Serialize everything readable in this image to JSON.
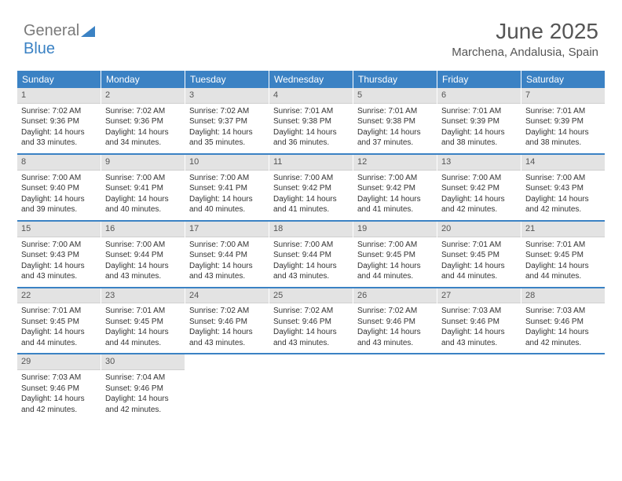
{
  "brand": {
    "part1": "General",
    "part2": "Blue"
  },
  "header": {
    "title": "June 2025",
    "location": "Marchena, Andalusia, Spain"
  },
  "colors": {
    "accent": "#3b82c4",
    "header_bg": "#3b82c4",
    "daynum_bg": "#e3e3e3"
  },
  "dayNames": [
    "Sunday",
    "Monday",
    "Tuesday",
    "Wednesday",
    "Thursday",
    "Friday",
    "Saturday"
  ],
  "weeks": [
    [
      {
        "n": "1",
        "sr": "Sunrise: 7:02 AM",
        "ss": "Sunset: 9:36 PM",
        "d1": "Daylight: 14 hours",
        "d2": "and 33 minutes."
      },
      {
        "n": "2",
        "sr": "Sunrise: 7:02 AM",
        "ss": "Sunset: 9:36 PM",
        "d1": "Daylight: 14 hours",
        "d2": "and 34 minutes."
      },
      {
        "n": "3",
        "sr": "Sunrise: 7:02 AM",
        "ss": "Sunset: 9:37 PM",
        "d1": "Daylight: 14 hours",
        "d2": "and 35 minutes."
      },
      {
        "n": "4",
        "sr": "Sunrise: 7:01 AM",
        "ss": "Sunset: 9:38 PM",
        "d1": "Daylight: 14 hours",
        "d2": "and 36 minutes."
      },
      {
        "n": "5",
        "sr": "Sunrise: 7:01 AM",
        "ss": "Sunset: 9:38 PM",
        "d1": "Daylight: 14 hours",
        "d2": "and 37 minutes."
      },
      {
        "n": "6",
        "sr": "Sunrise: 7:01 AM",
        "ss": "Sunset: 9:39 PM",
        "d1": "Daylight: 14 hours",
        "d2": "and 38 minutes."
      },
      {
        "n": "7",
        "sr": "Sunrise: 7:01 AM",
        "ss": "Sunset: 9:39 PM",
        "d1": "Daylight: 14 hours",
        "d2": "and 38 minutes."
      }
    ],
    [
      {
        "n": "8",
        "sr": "Sunrise: 7:00 AM",
        "ss": "Sunset: 9:40 PM",
        "d1": "Daylight: 14 hours",
        "d2": "and 39 minutes."
      },
      {
        "n": "9",
        "sr": "Sunrise: 7:00 AM",
        "ss": "Sunset: 9:41 PM",
        "d1": "Daylight: 14 hours",
        "d2": "and 40 minutes."
      },
      {
        "n": "10",
        "sr": "Sunrise: 7:00 AM",
        "ss": "Sunset: 9:41 PM",
        "d1": "Daylight: 14 hours",
        "d2": "and 40 minutes."
      },
      {
        "n": "11",
        "sr": "Sunrise: 7:00 AM",
        "ss": "Sunset: 9:42 PM",
        "d1": "Daylight: 14 hours",
        "d2": "and 41 minutes."
      },
      {
        "n": "12",
        "sr": "Sunrise: 7:00 AM",
        "ss": "Sunset: 9:42 PM",
        "d1": "Daylight: 14 hours",
        "d2": "and 41 minutes."
      },
      {
        "n": "13",
        "sr": "Sunrise: 7:00 AM",
        "ss": "Sunset: 9:42 PM",
        "d1": "Daylight: 14 hours",
        "d2": "and 42 minutes."
      },
      {
        "n": "14",
        "sr": "Sunrise: 7:00 AM",
        "ss": "Sunset: 9:43 PM",
        "d1": "Daylight: 14 hours",
        "d2": "and 42 minutes."
      }
    ],
    [
      {
        "n": "15",
        "sr": "Sunrise: 7:00 AM",
        "ss": "Sunset: 9:43 PM",
        "d1": "Daylight: 14 hours",
        "d2": "and 43 minutes."
      },
      {
        "n": "16",
        "sr": "Sunrise: 7:00 AM",
        "ss": "Sunset: 9:44 PM",
        "d1": "Daylight: 14 hours",
        "d2": "and 43 minutes."
      },
      {
        "n": "17",
        "sr": "Sunrise: 7:00 AM",
        "ss": "Sunset: 9:44 PM",
        "d1": "Daylight: 14 hours",
        "d2": "and 43 minutes."
      },
      {
        "n": "18",
        "sr": "Sunrise: 7:00 AM",
        "ss": "Sunset: 9:44 PM",
        "d1": "Daylight: 14 hours",
        "d2": "and 43 minutes."
      },
      {
        "n": "19",
        "sr": "Sunrise: 7:00 AM",
        "ss": "Sunset: 9:45 PM",
        "d1": "Daylight: 14 hours",
        "d2": "and 44 minutes."
      },
      {
        "n": "20",
        "sr": "Sunrise: 7:01 AM",
        "ss": "Sunset: 9:45 PM",
        "d1": "Daylight: 14 hours",
        "d2": "and 44 minutes."
      },
      {
        "n": "21",
        "sr": "Sunrise: 7:01 AM",
        "ss": "Sunset: 9:45 PM",
        "d1": "Daylight: 14 hours",
        "d2": "and 44 minutes."
      }
    ],
    [
      {
        "n": "22",
        "sr": "Sunrise: 7:01 AM",
        "ss": "Sunset: 9:45 PM",
        "d1": "Daylight: 14 hours",
        "d2": "and 44 minutes."
      },
      {
        "n": "23",
        "sr": "Sunrise: 7:01 AM",
        "ss": "Sunset: 9:45 PM",
        "d1": "Daylight: 14 hours",
        "d2": "and 44 minutes."
      },
      {
        "n": "24",
        "sr": "Sunrise: 7:02 AM",
        "ss": "Sunset: 9:46 PM",
        "d1": "Daylight: 14 hours",
        "d2": "and 43 minutes."
      },
      {
        "n": "25",
        "sr": "Sunrise: 7:02 AM",
        "ss": "Sunset: 9:46 PM",
        "d1": "Daylight: 14 hours",
        "d2": "and 43 minutes."
      },
      {
        "n": "26",
        "sr": "Sunrise: 7:02 AM",
        "ss": "Sunset: 9:46 PM",
        "d1": "Daylight: 14 hours",
        "d2": "and 43 minutes."
      },
      {
        "n": "27",
        "sr": "Sunrise: 7:03 AM",
        "ss": "Sunset: 9:46 PM",
        "d1": "Daylight: 14 hours",
        "d2": "and 43 minutes."
      },
      {
        "n": "28",
        "sr": "Sunrise: 7:03 AM",
        "ss": "Sunset: 9:46 PM",
        "d1": "Daylight: 14 hours",
        "d2": "and 42 minutes."
      }
    ],
    [
      {
        "n": "29",
        "sr": "Sunrise: 7:03 AM",
        "ss": "Sunset: 9:46 PM",
        "d1": "Daylight: 14 hours",
        "d2": "and 42 minutes."
      },
      {
        "n": "30",
        "sr": "Sunrise: 7:04 AM",
        "ss": "Sunset: 9:46 PM",
        "d1": "Daylight: 14 hours",
        "d2": "and 42 minutes."
      },
      {
        "empty": true
      },
      {
        "empty": true
      },
      {
        "empty": true
      },
      {
        "empty": true
      },
      {
        "empty": true
      }
    ]
  ]
}
